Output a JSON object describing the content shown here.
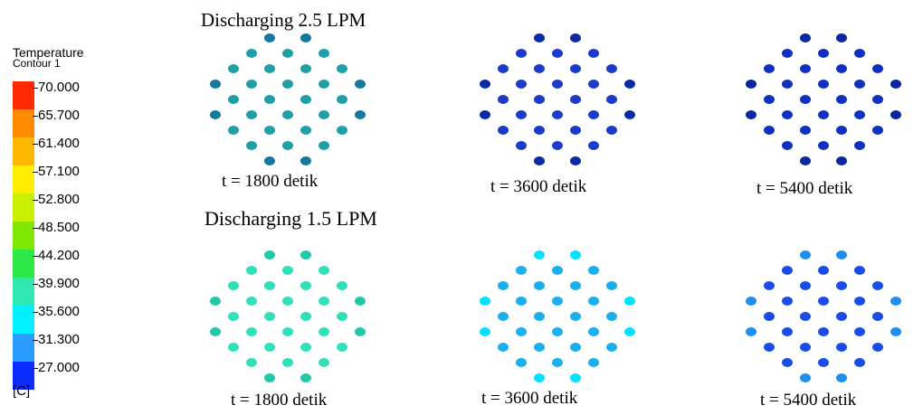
{
  "legend": {
    "title": "Temperature",
    "subtitle": "Contour 1",
    "unit": "[C]",
    "ticks": [
      "70.000",
      "65.700",
      "61.400",
      "57.100",
      "52.800",
      "48.500",
      "44.200",
      "39.900",
      "35.600",
      "31.300",
      "27.000"
    ],
    "bands": [
      "#ff2a00",
      "#ff8c00",
      "#ffb800",
      "#ffee00",
      "#c8f000",
      "#7ee800",
      "#2ee84a",
      "#2ee8b0",
      "#00f0ff",
      "#2a9cff",
      "#0a2cff"
    ]
  },
  "rows": [
    {
      "title": "Discharging 2.5 LPM",
      "panels": [
        {
          "time_label": "t = 1800 detik",
          "color": "#1f9fa6",
          "accent": "#1478a0"
        },
        {
          "time_label": "t = 3600 detik",
          "color": "#1a3cc8",
          "accent": "#0a2aa6"
        },
        {
          "time_label": "t = 5400 detik",
          "color": "#1030c0",
          "accent": "#0a26a0"
        }
      ]
    },
    {
      "title": "Discharging 1.5 LPM",
      "panels": [
        {
          "time_label": "t = 1800 detik",
          "color": "#2fe0b8",
          "accent": "#20c8a8"
        },
        {
          "time_label": "t = 3600 detik",
          "color": "#1ab0ee",
          "accent": "#00e0ff"
        },
        {
          "time_label": "t = 5400 detik",
          "color": "#1a4ce8",
          "accent": "#1e8ef0"
        }
      ]
    }
  ]
}
